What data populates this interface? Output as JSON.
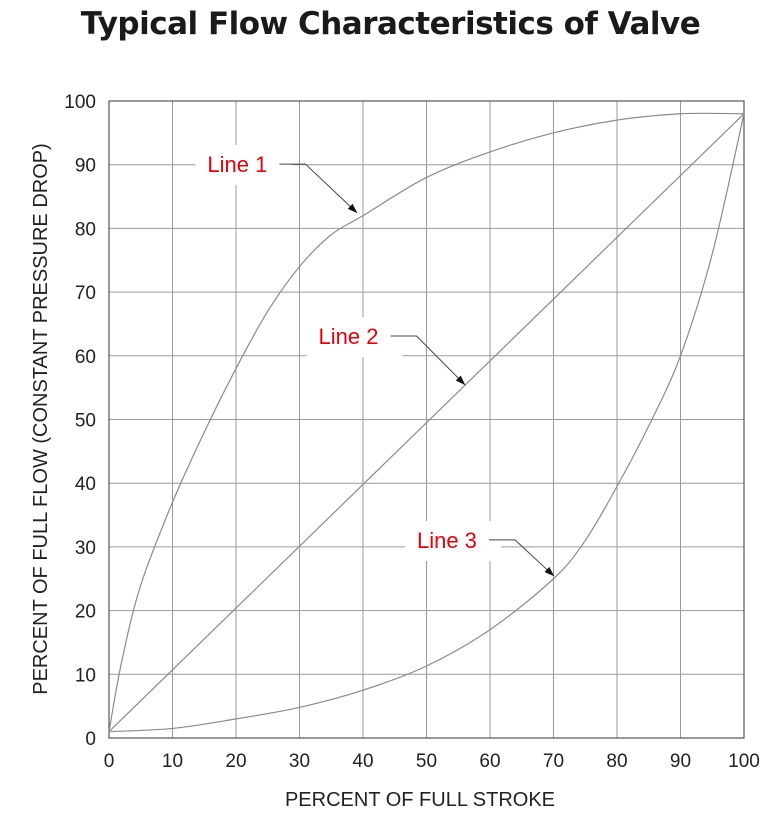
{
  "chart_data": {
    "type": "line",
    "title": "Typical Flow Characteristics of Valve",
    "xlabel": "PERCENT OF FULL STROKE",
    "ylabel": "PERCENT OF FULL FLOW (CONSTANT PRESSURE DROP)",
    "xlim": [
      0,
      100
    ],
    "ylim": [
      0,
      100
    ],
    "xticks": [
      0,
      10,
      20,
      30,
      40,
      50,
      60,
      70,
      80,
      90,
      100
    ],
    "yticks": [
      0,
      10,
      20,
      30,
      40,
      50,
      60,
      70,
      80,
      90,
      100
    ],
    "grid": true,
    "series": [
      {
        "name": "Line 1",
        "x": [
          0,
          2,
          5,
          10,
          15,
          20,
          25,
          30,
          35,
          40,
          50,
          60,
          70,
          80,
          90,
          100
        ],
        "y": [
          1,
          12,
          24,
          37,
          48,
          58,
          67,
          74,
          79,
          82,
          88,
          92,
          95,
          97,
          98,
          98
        ]
      },
      {
        "name": "Line 2",
        "x": [
          0,
          100
        ],
        "y": [
          1,
          98
        ]
      },
      {
        "name": "Line 3",
        "x": [
          0,
          10,
          20,
          30,
          40,
          50,
          60,
          70,
          75,
          80,
          85,
          90,
          95,
          100
        ],
        "y": [
          1,
          1.5,
          3,
          4.8,
          7.5,
          11.3,
          17,
          25,
          31,
          39.5,
          49,
          60,
          76,
          98
        ]
      }
    ],
    "annotations": [
      {
        "text": "Line 1",
        "color": "#e8000b",
        "text_x": 15.5,
        "text_y": 89,
        "target_x": 39,
        "target_y": 82.5
      },
      {
        "text": "Line 2",
        "color": "#e8000b",
        "text_x": 33,
        "text_y": 62,
        "target_x": 56,
        "target_y": 55.5
      },
      {
        "text": "Line 3",
        "color": "#e8000b",
        "text_x": 48.5,
        "text_y": 30,
        "target_x": 70,
        "target_y": 25.5
      }
    ]
  }
}
